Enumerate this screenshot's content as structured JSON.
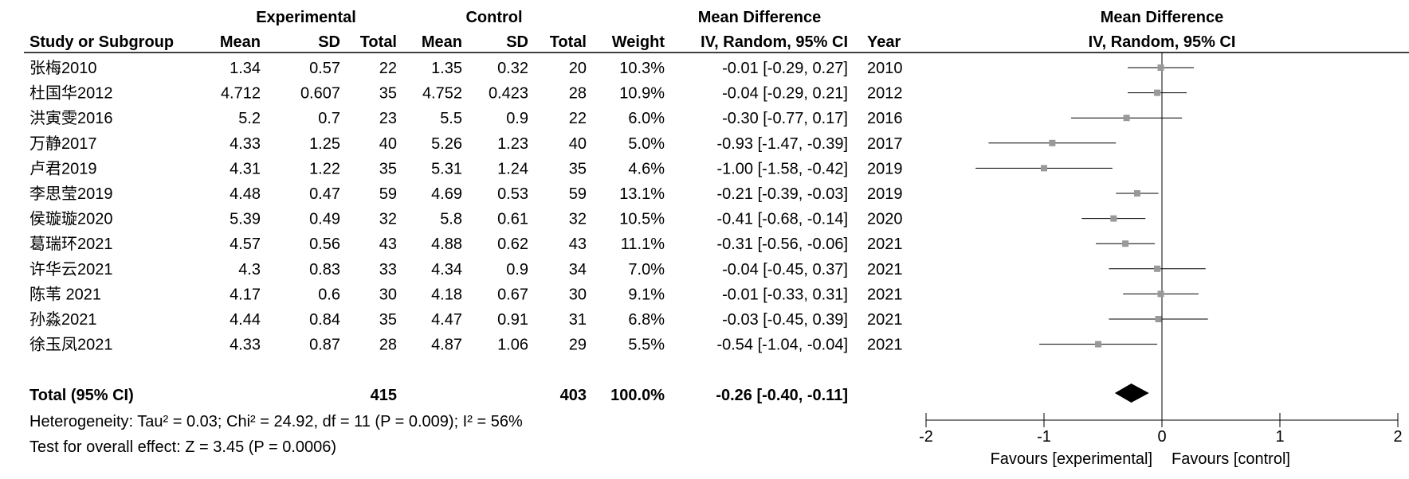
{
  "header": {
    "group_experimental": "Experimental",
    "group_control": "Control",
    "group_mean_difference": "Mean Difference",
    "plot_title": "Mean Difference",
    "plot_subtitle": "IV, Random, 95% CI",
    "col_study": "Study or Subgroup",
    "col_mean_e": "Mean",
    "col_sd_e": "SD",
    "col_total_e": "Total",
    "col_mean_c": "Mean",
    "col_sd_c": "SD",
    "col_total_c": "Total",
    "col_weight": "Weight",
    "col_md": "IV, Random, 95% CI",
    "col_year": "Year"
  },
  "studies": [
    {
      "study": "张梅2010",
      "mean_e": "1.34",
      "sd_e": "0.57",
      "total_e": "22",
      "mean_c": "1.35",
      "sd_c": "0.32",
      "total_c": "20",
      "weight": "10.3%",
      "ci_text": "-0.01 [-0.29, 0.27]",
      "year": "2010"
    },
    {
      "study": "杜国华2012",
      "mean_e": "4.712",
      "sd_e": "0.607",
      "total_e": "35",
      "mean_c": "4.752",
      "sd_c": "0.423",
      "total_c": "28",
      "weight": "10.9%",
      "ci_text": "-0.04 [-0.29, 0.21]",
      "year": "2012"
    },
    {
      "study": "洪寅雯2016",
      "mean_e": "5.2",
      "sd_e": "0.7",
      "total_e": "23",
      "mean_c": "5.5",
      "sd_c": "0.9",
      "total_c": "22",
      "weight": "6.0%",
      "ci_text": "-0.30 [-0.77, 0.17]",
      "year": "2016"
    },
    {
      "study": "万静2017",
      "mean_e": "4.33",
      "sd_e": "1.25",
      "total_e": "40",
      "mean_c": "5.26",
      "sd_c": "1.23",
      "total_c": "40",
      "weight": "5.0%",
      "ci_text": "-0.93 [-1.47, -0.39]",
      "year": "2017"
    },
    {
      "study": "卢君2019",
      "mean_e": "4.31",
      "sd_e": "1.22",
      "total_e": "35",
      "mean_c": "5.31",
      "sd_c": "1.24",
      "total_c": "35",
      "weight": "4.6%",
      "ci_text": "-1.00 [-1.58, -0.42]",
      "year": "2019"
    },
    {
      "study": "李思莹2019",
      "mean_e": "4.48",
      "sd_e": "0.47",
      "total_e": "59",
      "mean_c": "4.69",
      "sd_c": "0.53",
      "total_c": "59",
      "weight": "13.1%",
      "ci_text": "-0.21 [-0.39, -0.03]",
      "year": "2019"
    },
    {
      "study": "侯璇璇2020",
      "mean_e": "5.39",
      "sd_e": "0.49",
      "total_e": "32",
      "mean_c": "5.8",
      "sd_c": "0.61",
      "total_c": "32",
      "weight": "10.5%",
      "ci_text": "-0.41 [-0.68, -0.14]",
      "year": "2020"
    },
    {
      "study": "葛瑞环2021",
      "mean_e": "4.57",
      "sd_e": "0.56",
      "total_e": "43",
      "mean_c": "4.88",
      "sd_c": "0.62",
      "total_c": "43",
      "weight": "11.1%",
      "ci_text": "-0.31 [-0.56, -0.06]",
      "year": "2021"
    },
    {
      "study": "许华云2021",
      "mean_e": "4.3",
      "sd_e": "0.83",
      "total_e": "33",
      "mean_c": "4.34",
      "sd_c": "0.9",
      "total_c": "34",
      "weight": "7.0%",
      "ci_text": "-0.04 [-0.45, 0.37]",
      "year": "2021"
    },
    {
      "study": "陈苇 2021",
      "mean_e": "4.17",
      "sd_e": "0.6",
      "total_e": "30",
      "mean_c": "4.18",
      "sd_c": "0.67",
      "total_c": "30",
      "weight": "9.1%",
      "ci_text": "-0.01 [-0.33, 0.31]",
      "year": "2021"
    },
    {
      "study": "孙淼2021",
      "mean_e": "4.44",
      "sd_e": "0.84",
      "total_e": "35",
      "mean_c": "4.47",
      "sd_c": "0.91",
      "total_c": "31",
      "weight": "6.8%",
      "ci_text": "-0.03 [-0.45, 0.39]",
      "year": "2021"
    },
    {
      "study": "徐玉凤2021",
      "mean_e": "4.33",
      "sd_e": "0.87",
      "total_e": "28",
      "mean_c": "4.87",
      "sd_c": "1.06",
      "total_c": "29",
      "weight": "5.5%",
      "ci_text": "-0.54 [-1.04, -0.04]",
      "year": "2021"
    }
  ],
  "total": {
    "label": "Total (95% CI)",
    "total_e": "415",
    "total_c": "403",
    "weight": "100.0%",
    "ci_text": "-0.26 [-0.40, -0.11]"
  },
  "footer": {
    "heterogeneity": "Heterogeneity: Tau² = 0.03; Chi² = 24.92, df = 11 (P = 0.009); I² = 56%",
    "overall_effect": "Test for overall effect: Z = 3.45 (P = 0.0006)"
  },
  "chart_data": {
    "type": "forest",
    "title": "Mean Difference",
    "subtitle": "IV, Random, 95% CI",
    "xlim": [
      -2,
      2
    ],
    "ticks": [
      -2,
      -1,
      0,
      1,
      2
    ],
    "tick_labels": [
      "-2",
      "-1",
      "0",
      "1",
      "2"
    ],
    "favours_left": "Favours [experimental]",
    "favours_right": "Favours [control]",
    "points": [
      {
        "md": -0.01,
        "lo": -0.29,
        "hi": 0.27
      },
      {
        "md": -0.04,
        "lo": -0.29,
        "hi": 0.21
      },
      {
        "md": -0.3,
        "lo": -0.77,
        "hi": 0.17
      },
      {
        "md": -0.93,
        "lo": -1.47,
        "hi": -0.39
      },
      {
        "md": -1.0,
        "lo": -1.58,
        "hi": -0.42
      },
      {
        "md": -0.21,
        "lo": -0.39,
        "hi": -0.03
      },
      {
        "md": -0.41,
        "lo": -0.68,
        "hi": -0.14
      },
      {
        "md": -0.31,
        "lo": -0.56,
        "hi": -0.06
      },
      {
        "md": -0.04,
        "lo": -0.45,
        "hi": 0.37
      },
      {
        "md": -0.01,
        "lo": -0.33,
        "hi": 0.31
      },
      {
        "md": -0.03,
        "lo": -0.45,
        "hi": 0.39
      },
      {
        "md": -0.54,
        "lo": -1.04,
        "hi": -0.04
      }
    ],
    "pooled": {
      "md": -0.26,
      "lo": -0.4,
      "hi": -0.11
    },
    "marker_color": "#999999",
    "line_color": "#000000"
  }
}
